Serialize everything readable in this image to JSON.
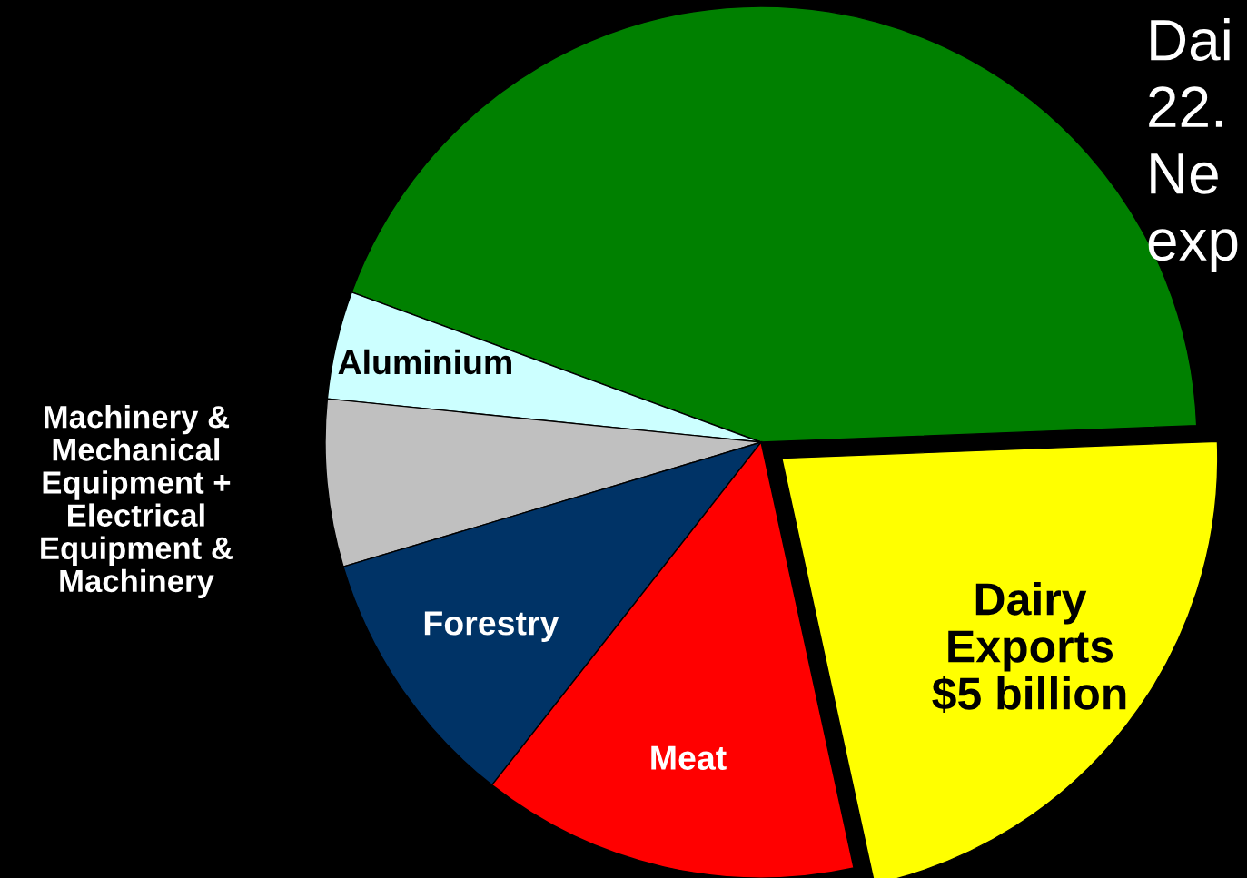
{
  "chart_data": {
    "type": "pie",
    "categories": [
      null,
      "Aluminium",
      "Machinery &\nMechanical\nEquipment +\nElectrical\nEquipment &\nMachinery",
      "Forestry",
      "Meat",
      "Dairy\nExports\n$5 billion"
    ],
    "values": [
      43.8,
      4.0,
      6.2,
      9.8,
      14.0,
      22.2
    ],
    "colors": [
      "#008000",
      "#ccffff",
      "#c0c0c0",
      "#003366",
      "#ff0000",
      "#ffff00"
    ],
    "annotations": [
      "Dai\n22.\nNe\nexp"
    ]
  }
}
